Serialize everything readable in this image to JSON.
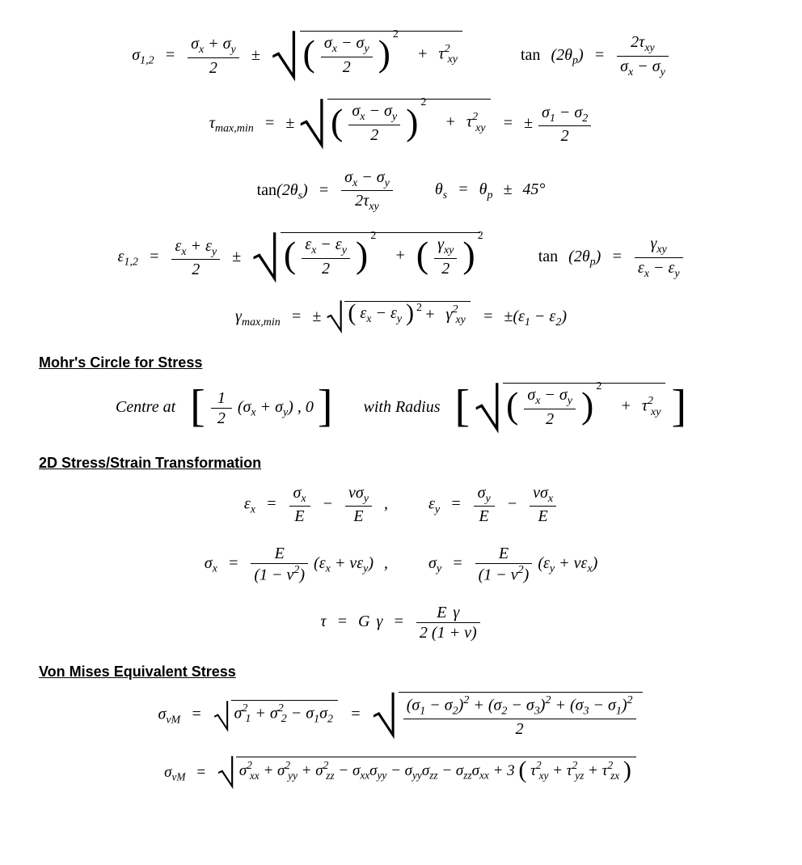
{
  "colors": {
    "text": "#000000",
    "background": "#ffffff"
  },
  "font": {
    "family_math": "Cambria Math",
    "family_heading": "Arial",
    "size_eq_pt": 20,
    "size_heading_pt": 18
  },
  "symbols": {
    "sigma": "σ",
    "tau": "τ",
    "epsilon": "ε",
    "gamma": "γ",
    "nu": "ν",
    "theta": "θ",
    "pm": "±",
    "deg": "°",
    "minus": "−",
    "plus": "+",
    "eq": "=",
    "comma": ",",
    "sqrt_tall": "⎷",
    "sqrt_small": "√"
  },
  "vars": {
    "x": "x",
    "y": "y",
    "z": "z",
    "p": "p",
    "s": "s",
    "one": "1",
    "two": "2",
    "three": "3",
    "E": "E",
    "G": "G",
    "vM": "vM",
    "xx": "xx",
    "yy": "yy",
    "zz": "zz",
    "xy": "xy",
    "yz": "yz",
    "zx": "zx",
    "maxmin": "max,min",
    "onetwo": "1,2",
    "fortyfive": "45"
  },
  "words": {
    "tan": "tan",
    "Centre_at": "Centre at",
    "with_Radius": "with Radius"
  },
  "headings": {
    "mohr": "Mohr's Circle for Stress",
    "transform": "2D Stress/Strain Transformation",
    "vonmises": "Von Mises Equivalent Stress"
  },
  "equations_description": [
    "σ₁,₂ = (σx+σy)/2 ± √[((σx−σy)/2)² + τ²xy]   and   tan(2θp) = 2τxy / (σx−σy)",
    "τ_max,min = ± √[((σx−σy)/2)² + τ²xy] = ± (σ₁−σ₂)/2",
    "tan(2θs) = (σx−σy)/(2τxy)   ,   θs = θp ± 45°",
    "ε₁,₂ = (εx+εy)/2 ± √[((εx−εy)/2)² + (γxy/2)²]   and   tan(2θp) = γxy/(εx−εy)",
    "γ_max,min = ± √[(εx−εy)² + γ²xy] = ±(ε₁−ε₂)",
    "Mohr centre [ (σx+σy)/2 , 0 ] radius √[((σx−σy)/2)² + τ²xy]",
    "εx = σx/E − νσy/E , εy = σy/E − νσx/E",
    "σx = E/(1−ν²)(εx+νεy) , σy = E/(1−ν²)(εy+νεx)",
    "τ = Gγ = Eγ / (2(1+ν))",
    "σvM = √[σ₁²+σ₂²−σ₁σ₂] = √[((σ₁−σ₂)²+(σ₂−σ₃)²+(σ₃−σ₁)²)/2]",
    "σvM = √[σxx²+σyy²+σzz² − σxxσyy − σyyσzz − σzzσxx + 3(τxy²+τyz²+τzx²)]"
  ]
}
